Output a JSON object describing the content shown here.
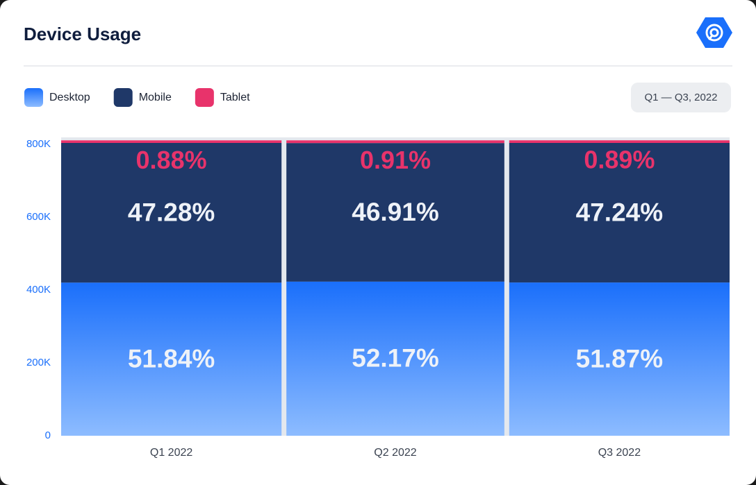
{
  "chart_data": {
    "type": "stacked_bar",
    "title": "Device Usage",
    "date_range": "Q1 — Q3, 2022",
    "categories": [
      "Q1 2022",
      "Q2 2022",
      "Q3 2022"
    ],
    "series": [
      {
        "name": "Desktop",
        "color": "#1a6ffb",
        "values": [
          420400,
          423100,
          420700
        ],
        "value_labels": [
          "51.84%",
          "52.17%",
          "51.87%"
        ]
      },
      {
        "name": "Mobile",
        "color": "#1f3868",
        "values": [
          383400,
          380400,
          383100
        ],
        "value_labels": [
          "47.28%",
          "46.91%",
          "47.24%"
        ]
      },
      {
        "name": "Tablet",
        "color": "#e8336b",
        "values": [
          7100,
          7400,
          7200
        ],
        "value_labels": [
          "0.88%",
          "0.91%",
          "0.89%"
        ]
      }
    ],
    "ylim": [
      0,
      800000
    ],
    "yticks": [
      {
        "value": 0,
        "label": "0"
      },
      {
        "value": 200000,
        "label": "200K"
      },
      {
        "value": 400000,
        "label": "400K"
      },
      {
        "value": 600000,
        "label": "600K"
      },
      {
        "value": 800000,
        "label": "800K"
      }
    ]
  }
}
